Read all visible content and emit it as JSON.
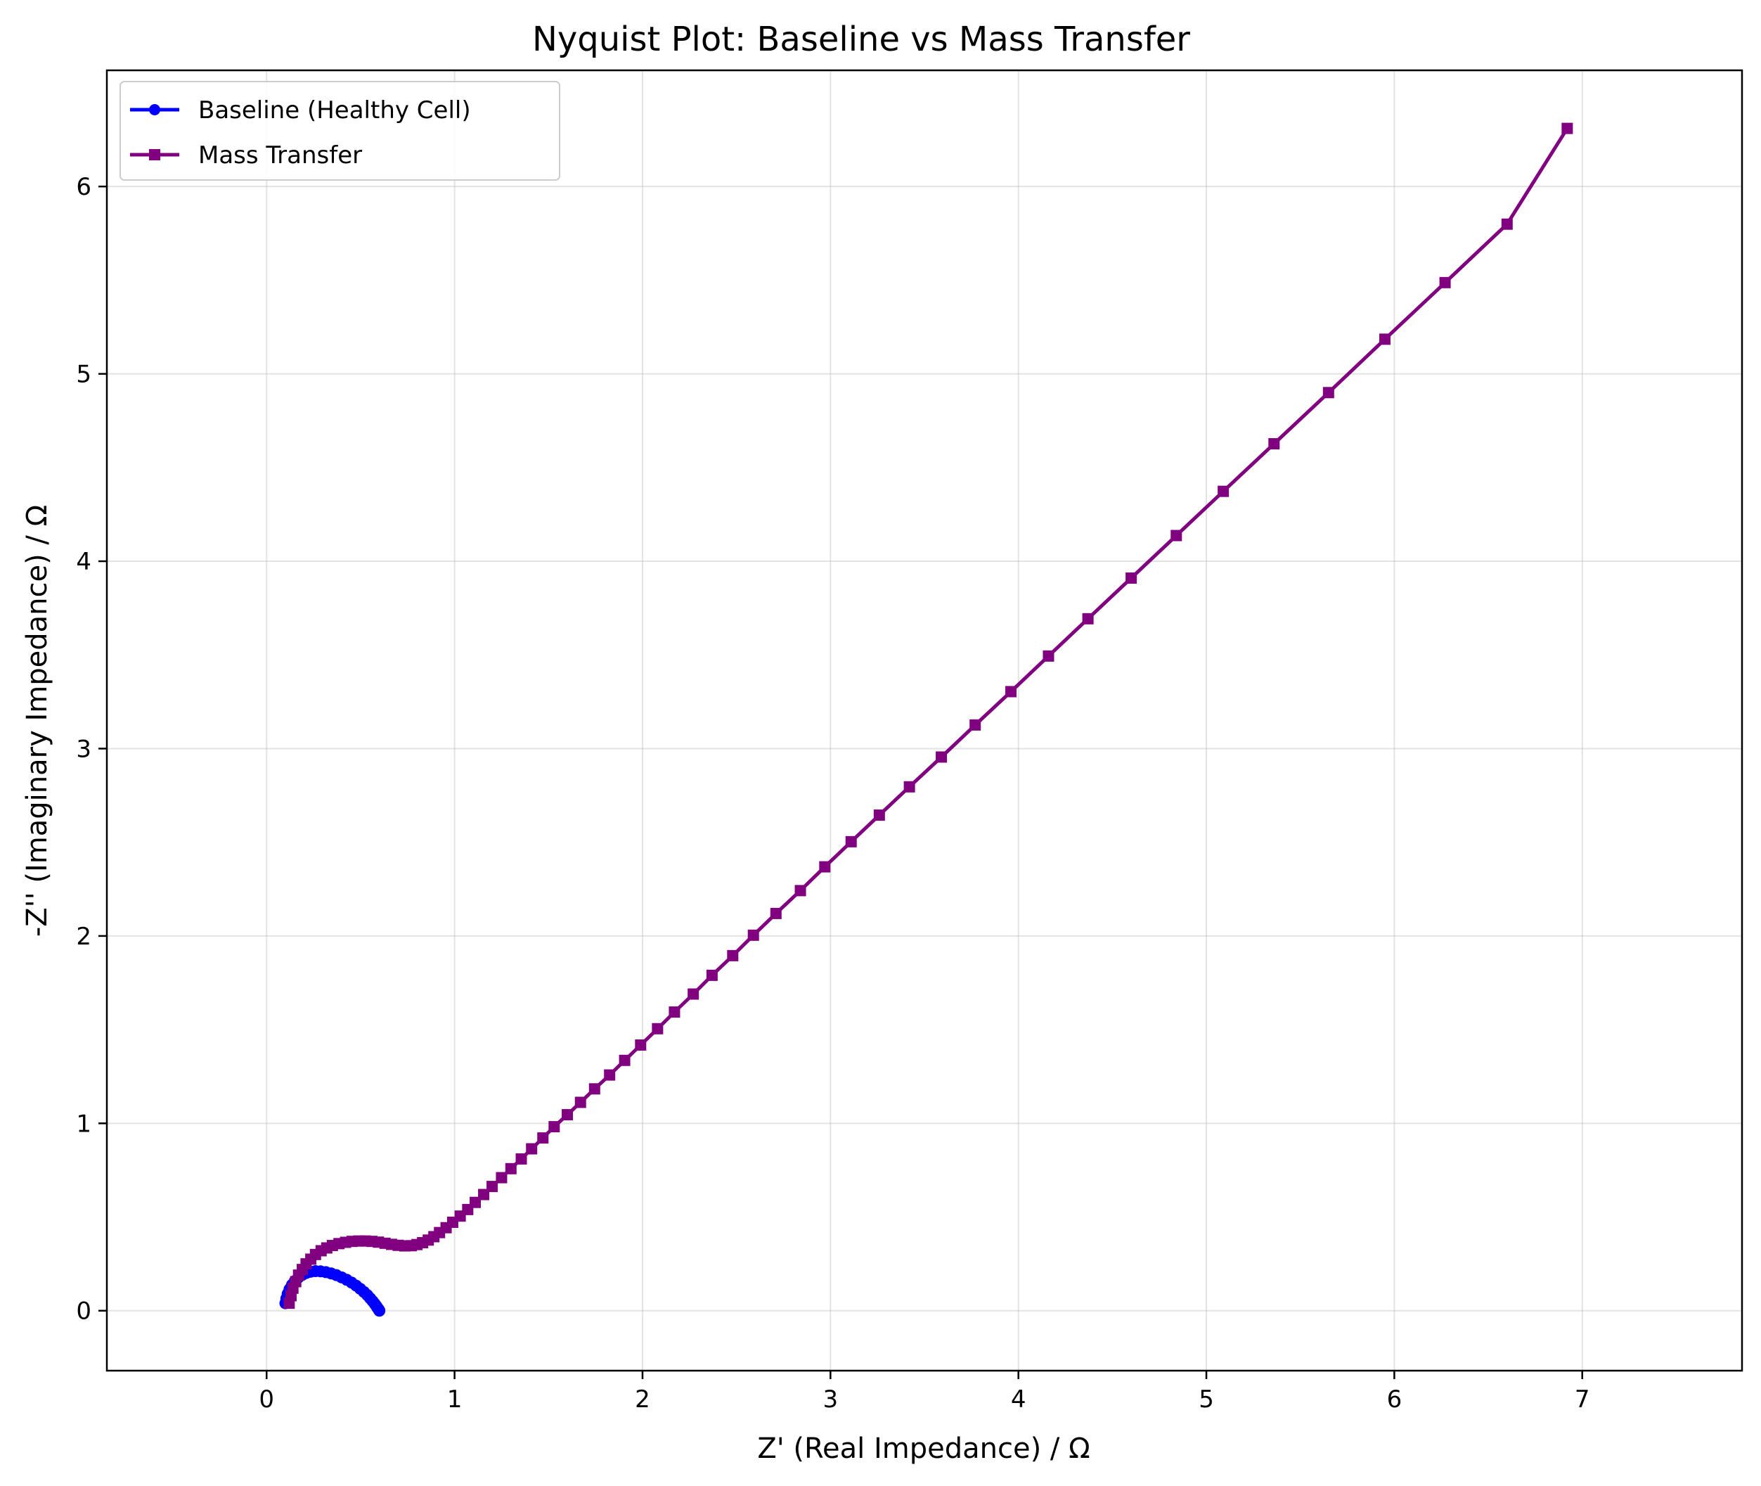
{
  "chart_data": {
    "type": "line",
    "title": "Nyquist Plot: Baseline vs Mass Transfer",
    "xlabel": "Z' (Real Impedance) / Ω",
    "ylabel": "-Z'' (Imaginary Impedance) / Ω",
    "xlim": [
      -0.85,
      7.85
    ],
    "ylim": [
      -0.32,
      6.62
    ],
    "xticks": [
      0,
      1,
      2,
      3,
      4,
      5,
      6,
      7
    ],
    "yticks": [
      0,
      1,
      2,
      3,
      4,
      5,
      6
    ],
    "grid": true,
    "legend_position": "top-left",
    "series": [
      {
        "name": "Baseline (Healthy Cell)",
        "color": "#0000ff",
        "marker": "circle",
        "x": [
          0.1,
          0.105,
          0.112,
          0.122,
          0.135,
          0.15,
          0.168,
          0.188,
          0.21,
          0.234,
          0.26,
          0.287,
          0.315,
          0.343,
          0.371,
          0.399,
          0.426,
          0.452,
          0.476,
          0.498,
          0.518,
          0.536,
          0.551,
          0.564,
          0.575,
          0.583,
          0.589,
          0.594,
          0.597,
          0.599,
          0.6
        ],
        "y": [
          0.04,
          0.065,
          0.09,
          0.115,
          0.138,
          0.158,
          0.176,
          0.19,
          0.201,
          0.208,
          0.211,
          0.21,
          0.206,
          0.199,
          0.19,
          0.178,
          0.165,
          0.15,
          0.134,
          0.117,
          0.1,
          0.083,
          0.066,
          0.051,
          0.037,
          0.026,
          0.017,
          0.01,
          0.005,
          0.002,
          0.0
        ]
      },
      {
        "name": "Mass Transfer",
        "color": "#800080",
        "marker": "square",
        "x": [
          0.12,
          0.13,
          0.14,
          0.155,
          0.17,
          0.19,
          0.21,
          0.235,
          0.26,
          0.29,
          0.32,
          0.35,
          0.385,
          0.42,
          0.455,
          0.49,
          0.525,
          0.56,
          0.595,
          0.63,
          0.665,
          0.7,
          0.735,
          0.77,
          0.8,
          0.83,
          0.86,
          0.89,
          0.92,
          0.955,
          0.99,
          1.03,
          1.07,
          1.11,
          1.155,
          1.2,
          1.25,
          1.3,
          1.355,
          1.41,
          1.47,
          1.53,
          1.6,
          1.67,
          1.745,
          1.825,
          1.905,
          1.99,
          2.08,
          2.17,
          2.27,
          2.37,
          2.48,
          2.59,
          2.71,
          2.84,
          2.97,
          3.11,
          3.26,
          3.42,
          3.59,
          3.77,
          3.96,
          4.16,
          4.37,
          4.6,
          4.84,
          5.09,
          5.36,
          5.65,
          5.95,
          6.27,
          6.6,
          6.92
        ],
        "y": [
          0.04,
          0.08,
          0.12,
          0.155,
          0.19,
          0.22,
          0.25,
          0.275,
          0.3,
          0.32,
          0.335,
          0.348,
          0.358,
          0.365,
          0.37,
          0.372,
          0.372,
          0.37,
          0.366,
          0.36,
          0.354,
          0.349,
          0.346,
          0.347,
          0.353,
          0.363,
          0.377,
          0.395,
          0.417,
          0.443,
          0.472,
          0.505,
          0.54,
          0.578,
          0.62,
          0.663,
          0.71,
          0.758,
          0.81,
          0.864,
          0.922,
          0.982,
          1.046,
          1.112,
          1.184,
          1.258,
          1.336,
          1.418,
          1.505,
          1.594,
          1.69,
          1.79,
          1.895,
          2.004,
          2.12,
          2.242,
          2.369,
          2.503,
          2.645,
          2.796,
          2.955,
          3.126,
          3.304,
          3.494,
          3.693,
          3.91,
          4.137,
          4.373,
          4.627,
          4.9,
          5.185,
          5.487,
          5.799,
          6.31
        ]
      }
    ]
  }
}
